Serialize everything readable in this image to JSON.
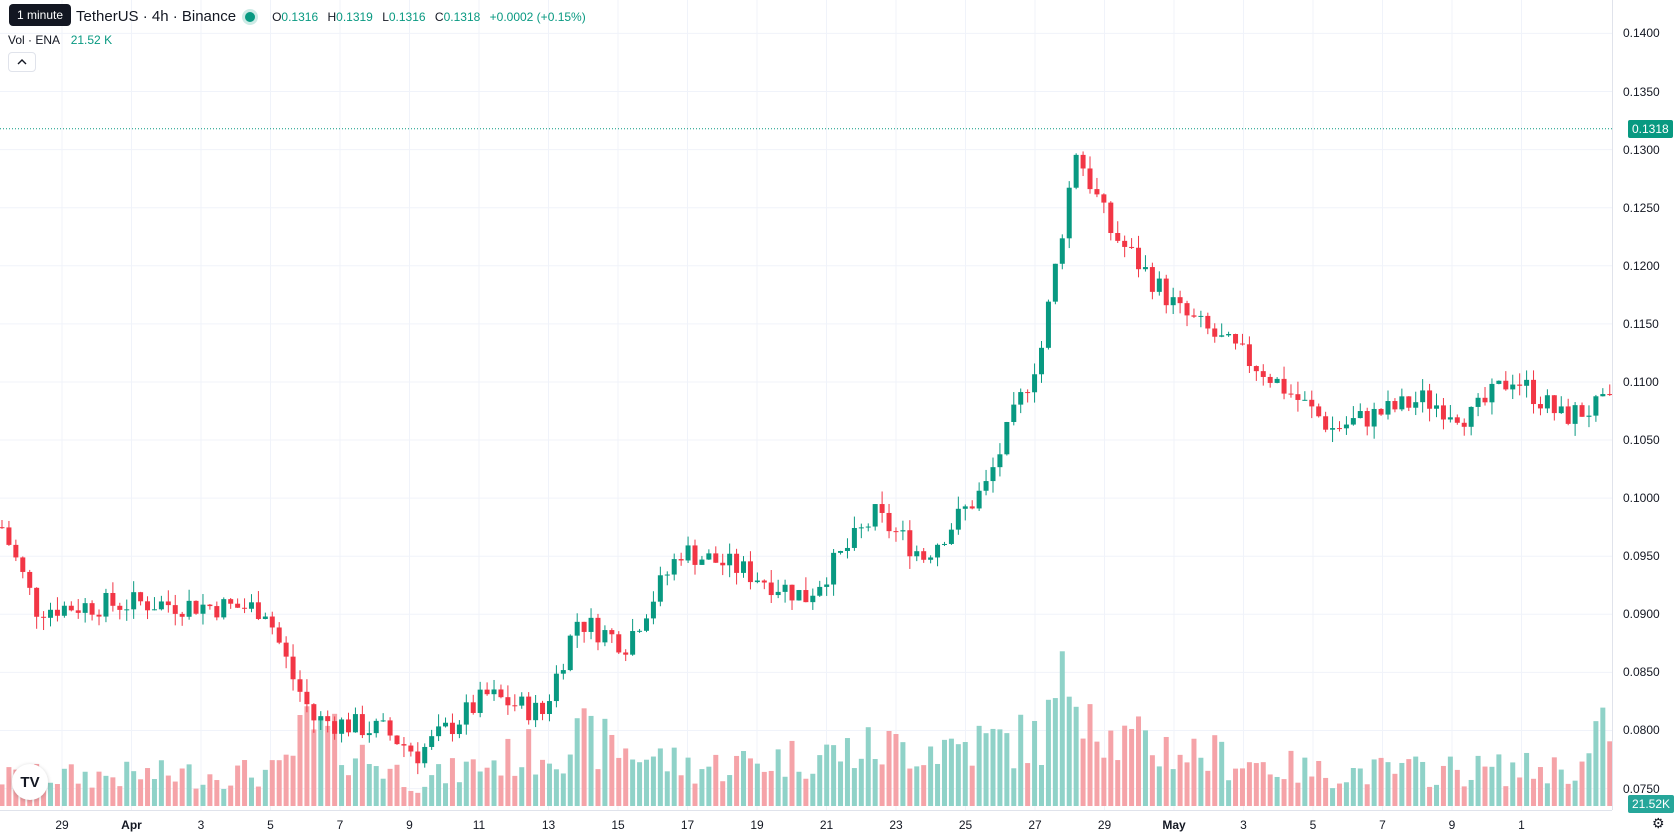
{
  "header": {
    "tooltip": "1 minute",
    "symbol": "TetherUS · 4h · Binance",
    "ohlc": {
      "o_label": "O",
      "o": "0.1316",
      "h_label": "H",
      "h": "0.1319",
      "l_label": "L",
      "l": "0.1316",
      "c_label": "C",
      "c": "0.1318",
      "change": "+0.0002 (+0.15%)"
    },
    "volume_label": "Vol · ENA",
    "volume_value": "21.52 K",
    "collapse_icon": "chevron-up-icon"
  },
  "price_axis": {
    "labels": [
      "0.1400",
      "0.1350",
      "0.1300",
      "0.1250",
      "0.1200",
      "0.1150",
      "0.1100",
      "0.1050",
      "0.1000",
      "0.0950",
      "0.0900",
      "0.0850",
      "0.0800",
      "0.0750"
    ],
    "current_price": "0.1318",
    "current_volume": "21.52K"
  },
  "time_axis": {
    "labels": [
      {
        "text": "29",
        "bold": false
      },
      {
        "text": "Apr",
        "bold": true
      },
      {
        "text": "3",
        "bold": false
      },
      {
        "text": "5",
        "bold": false
      },
      {
        "text": "7",
        "bold": false
      },
      {
        "text": "9",
        "bold": false
      },
      {
        "text": "11",
        "bold": false
      },
      {
        "text": "13",
        "bold": false
      },
      {
        "text": "15",
        "bold": false
      },
      {
        "text": "17",
        "bold": false
      },
      {
        "text": "19",
        "bold": false
      },
      {
        "text": "21",
        "bold": false
      },
      {
        "text": "23",
        "bold": false
      },
      {
        "text": "25",
        "bold": false
      },
      {
        "text": "27",
        "bold": false
      },
      {
        "text": "29",
        "bold": false
      },
      {
        "text": "May",
        "bold": true
      },
      {
        "text": "3",
        "bold": false
      },
      {
        "text": "5",
        "bold": false
      },
      {
        "text": "7",
        "bold": false
      },
      {
        "text": "9",
        "bold": false
      },
      {
        "text": "1",
        "bold": false
      }
    ]
  },
  "colors": {
    "up": "#089981",
    "down": "#f23645",
    "vol_up": "#8fd2c8",
    "vol_down": "#f5a3a8",
    "grid": "#f0f3fa"
  },
  "icons": {
    "logo": "tradingview-logo-icon",
    "settings": "settings-icon"
  },
  "logo_text": "TV",
  "chart_data": {
    "type": "candlestick",
    "interval": "4h",
    "pair": "ENA/USDT",
    "ylim": [
      0.0735,
      0.1415
    ],
    "keyframes": [
      [
        0,
        0.0975
      ],
      [
        5,
        0.0905
      ],
      [
        20,
        0.091
      ],
      [
        38,
        0.0905
      ],
      [
        42,
        0.0845
      ],
      [
        45,
        0.081
      ],
      [
        55,
        0.08
      ],
      [
        60,
        0.078
      ],
      [
        70,
        0.083
      ],
      [
        78,
        0.0815
      ],
      [
        83,
        0.0895
      ],
      [
        90,
        0.0875
      ],
      [
        98,
        0.0955
      ],
      [
        106,
        0.094
      ],
      [
        116,
        0.0915
      ],
      [
        126,
        0.0985
      ],
      [
        133,
        0.095
      ],
      [
        142,
        0.101
      ],
      [
        150,
        0.113
      ],
      [
        155,
        0.13
      ],
      [
        160,
        0.123
      ],
      [
        170,
        0.116
      ],
      [
        182,
        0.111
      ],
      [
        192,
        0.106
      ],
      [
        205,
        0.1085
      ],
      [
        212,
        0.107
      ],
      [
        218,
        0.1105
      ],
      [
        225,
        0.107
      ],
      [
        235,
        0.1085
      ],
      [
        238,
        0.103
      ],
      [
        252,
        0.1025
      ],
      [
        262,
        0.101
      ],
      [
        270,
        0.102
      ],
      [
        278,
        0.105
      ],
      [
        286,
        0.111
      ],
      [
        292,
        0.12
      ],
      [
        296,
        0.1165
      ],
      [
        302,
        0.1205
      ],
      [
        306,
        0.119
      ],
      [
        312,
        0.132
      ],
      [
        315,
        0.1318
      ]
    ],
    "volume_keyframes": [
      [
        0,
        30
      ],
      [
        40,
        35
      ],
      [
        44,
        80
      ],
      [
        60,
        25
      ],
      [
        70,
        45
      ],
      [
        84,
        70
      ],
      [
        100,
        40
      ],
      [
        126,
        60
      ],
      [
        150,
        70
      ],
      [
        155,
        150
      ],
      [
        160,
        70
      ],
      [
        190,
        35
      ],
      [
        228,
        40
      ],
      [
        232,
        90
      ],
      [
        240,
        50
      ],
      [
        262,
        90
      ],
      [
        270,
        70
      ],
      [
        276,
        140
      ],
      [
        290,
        70
      ],
      [
        296,
        155
      ],
      [
        302,
        70
      ],
      [
        310,
        80
      ],
      [
        315,
        35
      ]
    ]
  }
}
